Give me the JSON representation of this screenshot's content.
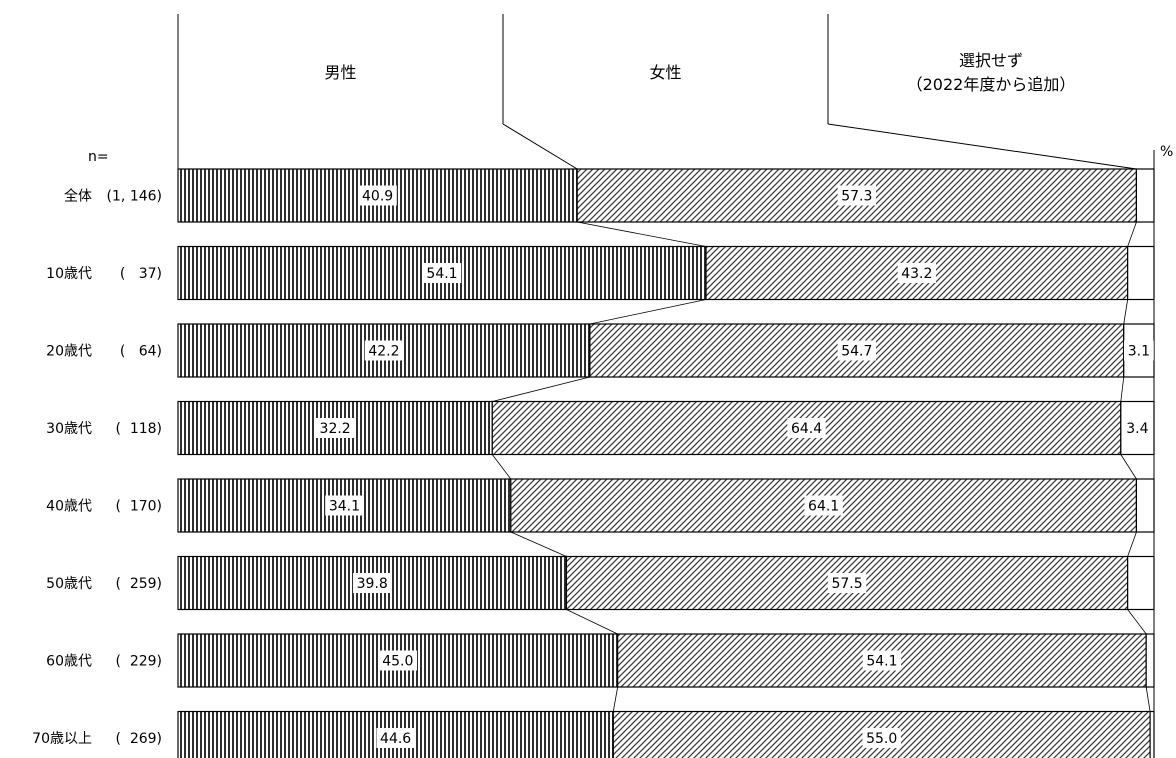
{
  "chart_data": {
    "type": "bar",
    "orientation": "horizontal-stacked-percent",
    "n_label": "n=",
    "unit_label": "%",
    "categories": [
      "全体",
      "10歳代",
      "20歳代",
      "30歳代",
      "40歳代",
      "50歳代",
      "60歳代",
      "70歳以上"
    ],
    "n": [
      "(1, 146)",
      "(   37)",
      "(   64)",
      "(  118)",
      "(  170)",
      "(  259)",
      "(  229)",
      "(  269)"
    ],
    "series": [
      {
        "name": "男性",
        "values": [
          40.9,
          54.1,
          42.2,
          32.2,
          34.1,
          39.8,
          45.0,
          44.6
        ]
      },
      {
        "name": "女性",
        "values": [
          57.3,
          43.2,
          54.7,
          64.4,
          64.1,
          57.5,
          54.1,
          55.0
        ]
      },
      {
        "name": "選択せず\n（2022年度から追加）",
        "values": [
          1.8,
          2.7,
          3.1,
          3.4,
          1.8,
          2.7,
          0.8,
          0.4
        ]
      }
    ],
    "value_labels": [
      [
        "40.9",
        "57.3",
        ""
      ],
      [
        "54.1",
        "43.2",
        ""
      ],
      [
        "42.2",
        "54.7",
        "3.1"
      ],
      [
        "32.2",
        "64.4",
        "3.4"
      ],
      [
        "34.1",
        "64.1",
        ""
      ],
      [
        "39.8",
        "57.5",
        ""
      ],
      [
        "45.0",
        "54.1",
        ""
      ],
      [
        "44.6",
        "55.0",
        ""
      ]
    ],
    "xlim": [
      0,
      100
    ],
    "grid": false,
    "legend": "top"
  },
  "colors": {
    "male": "#555555",
    "female": "#777777",
    "none": "#ffffff",
    "outline": "#000000"
  }
}
